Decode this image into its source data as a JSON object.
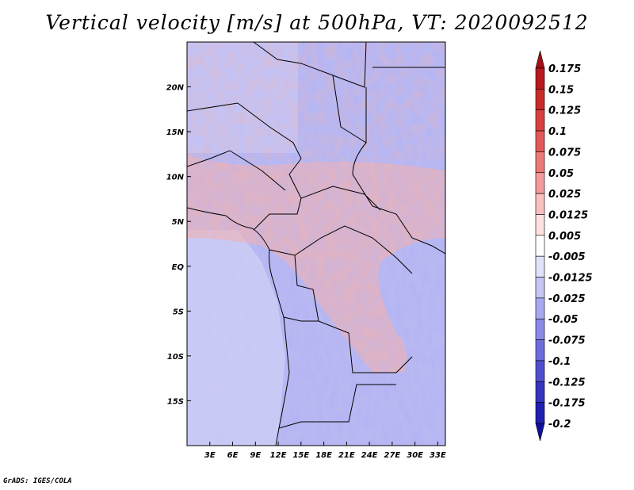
{
  "title": "Vertical velocity [m/s] at 500hPa, VT: 2020092512",
  "credit": "GrADS: IGES/COLA",
  "map": {
    "lon_range": [
      0,
      34
    ],
    "lat_range": [
      -20,
      25
    ],
    "lon_ticks": [
      3,
      6,
      9,
      12,
      15,
      18,
      21,
      24,
      27,
      30,
      33
    ],
    "lon_tick_labels": [
      "3E",
      "6E",
      "9E",
      "12E",
      "15E",
      "18E",
      "21E",
      "24E",
      "27E",
      "30E",
      "33E"
    ],
    "lat_ticks": [
      20,
      15,
      10,
      5,
      0,
      -5,
      -10,
      -15
    ],
    "lat_tick_labels": [
      "20N",
      "15N",
      "10N",
      "5N",
      "EQ",
      "5S",
      "10S",
      "15S"
    ]
  },
  "colorbar": {
    "labels": [
      "0.175",
      "0.15",
      "0.125",
      "0.1",
      "0.075",
      "0.05",
      "0.025",
      "0.0125",
      "0.005",
      "-0.005",
      "-0.0125",
      "-0.025",
      "-0.05",
      "-0.075",
      "-0.1",
      "-0.125",
      "-0.175",
      "-0.2"
    ],
    "colors": [
      "#a50f15",
      "#b8191e",
      "#c92a2a",
      "#d84040",
      "#e35858",
      "#ec7878",
      "#f49a9a",
      "#f9c0c0",
      "#fde0e0",
      "#ffffff",
      "#e2e2fb",
      "#c6c6f6",
      "#a8a8f0",
      "#8a8ae8",
      "#6c6cdd",
      "#4f4fcf",
      "#3535c0",
      "#2020b0",
      "#1010a0"
    ]
  }
}
